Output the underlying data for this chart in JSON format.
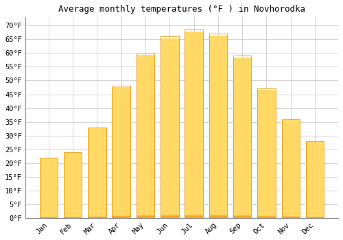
{
  "title": "Average monthly temperatures (°F ) in Novhorodka",
  "months": [
    "Jan",
    "Feb",
    "Mar",
    "Apr",
    "May",
    "Jun",
    "Jul",
    "Aug",
    "Sep",
    "Oct",
    "Nov",
    "Dec"
  ],
  "values": [
    22,
    24,
    33,
    48,
    60,
    66,
    68.5,
    67,
    59,
    47,
    36,
    28
  ],
  "bar_color_bottom": "#F5A623",
  "bar_color_top": "#FFD966",
  "bar_edge_color": "#E8960A",
  "background_color": "#FFFFFF",
  "plot_bg_color": "#FFFFFF",
  "grid_color": "#CCCCCC",
  "ylim": [
    0,
    73
  ],
  "yticks": [
    0,
    5,
    10,
    15,
    20,
    25,
    30,
    35,
    40,
    45,
    50,
    55,
    60,
    65,
    70
  ],
  "title_fontsize": 9,
  "tick_fontsize": 7.5,
  "tick_font": "monospace",
  "bar_width": 0.75
}
